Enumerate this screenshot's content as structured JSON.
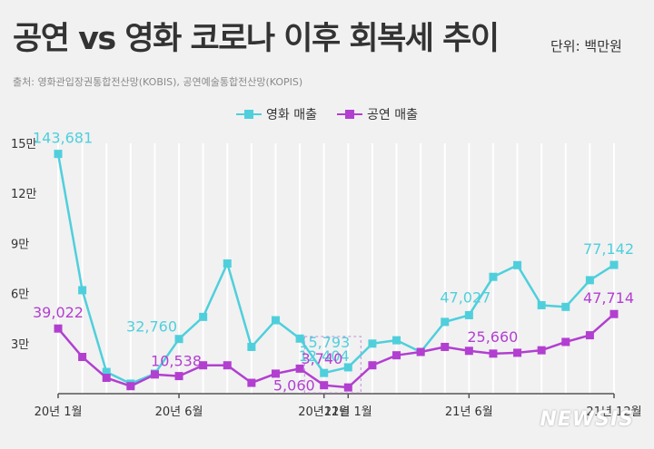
{
  "header": {
    "title": "공연 vs 영화 코로나 이후 회복세 추이",
    "unit": "단위: 백만원",
    "source": "출처: 영화관입장권통합전산망(KOBIS), 공연예술통합전산망(KOPIS)"
  },
  "watermark": "NEWSIS",
  "colors": {
    "movie": "#4fcfdc",
    "performance": "#b23fd0",
    "grid": "#ffffff",
    "axis": "#555555",
    "text": "#333333"
  },
  "chart_data": {
    "type": "line",
    "title": "공연 vs 영화 코로나 이후 회복세 추이",
    "xlabel": "",
    "ylabel": "단위: 백만원",
    "ylim": [
      0,
      150000
    ],
    "y_ticks": [
      {
        "value": 30000,
        "label": "3만"
      },
      {
        "value": 60000,
        "label": "6만"
      },
      {
        "value": 90000,
        "label": "9만"
      },
      {
        "value": 120000,
        "label": "12만"
      },
      {
        "value": 150000,
        "label": "15만"
      }
    ],
    "x_ticks": [
      {
        "index": 0,
        "label": "20년 1월"
      },
      {
        "index": 5,
        "label": "20년 6월"
      },
      {
        "index": 11,
        "label": "20년12월"
      },
      {
        "index": 12,
        "label": "21년 1월"
      },
      {
        "index": 17,
        "label": "21년 6월"
      },
      {
        "index": 23,
        "label": "21년 12월"
      }
    ],
    "categories": [
      "20.01",
      "20.02",
      "20.03",
      "20.04",
      "20.05",
      "20.06",
      "20.07",
      "20.08",
      "20.09",
      "20.10",
      "20.11",
      "20.12",
      "21.01",
      "21.02",
      "21.03",
      "21.04",
      "21.05",
      "21.06",
      "21.07",
      "21.08",
      "21.09",
      "21.10",
      "21.11",
      "21.12"
    ],
    "legend": [
      "영화 매출",
      "공연 매출"
    ],
    "series": [
      {
        "name": "영화 매출",
        "color": "#4fcfdc",
        "values": [
          143681,
          62000,
          13000,
          6000,
          12000,
          32760,
          46000,
          78000,
          28000,
          44000,
          33000,
          12404,
          15793,
          30000,
          32000,
          25000,
          43000,
          47027,
          70000,
          77000,
          53000,
          52000,
          68000,
          77142
        ]
      },
      {
        "name": "공연 매출",
        "color": "#b23fd0",
        "values": [
          39022,
          22000,
          9500,
          4500,
          11500,
          10538,
          17000,
          17000,
          6500,
          12000,
          15000,
          5060,
          3740,
          17000,
          23000,
          25000,
          28000,
          25660,
          24000,
          24500,
          26000,
          31000,
          35000,
          47714
        ]
      }
    ],
    "annotations": [
      {
        "series": 0,
        "index": 0,
        "label": "143,681"
      },
      {
        "series": 0,
        "index": 5,
        "label": "32,760"
      },
      {
        "series": 0,
        "index": 11,
        "label": "12,404"
      },
      {
        "series": 0,
        "index": 12,
        "label": "15,793"
      },
      {
        "series": 0,
        "index": 17,
        "label": "47,027"
      },
      {
        "series": 0,
        "index": 23,
        "label": "77,142"
      },
      {
        "series": 1,
        "index": 0,
        "label": "39,022"
      },
      {
        "series": 1,
        "index": 5,
        "label": "10,538"
      },
      {
        "series": 1,
        "index": 11,
        "label": "5,060"
      },
      {
        "series": 1,
        "index": 12,
        "label": "3,740"
      },
      {
        "series": 1,
        "index": 17,
        "label": "25,660"
      },
      {
        "series": 1,
        "index": 23,
        "label": "47,714"
      }
    ]
  }
}
